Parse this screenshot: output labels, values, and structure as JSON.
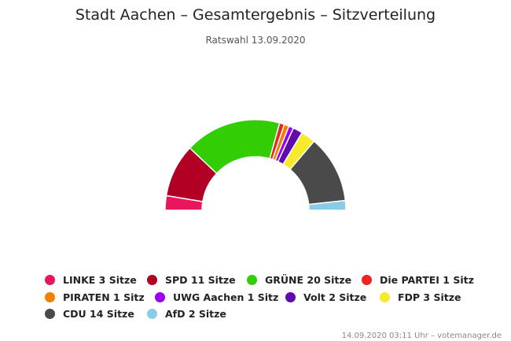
{
  "chart_data": {
    "type": "pie",
    "variant": "semicircle-donut",
    "title": "Stadt Aachen – Gesamtergebnis – Sitzverteilung",
    "subtitle": "Ratswahl 13.09.2020",
    "legend_position": "bottom",
    "series": [
      {
        "name": "LINKE",
        "value": 3,
        "label": "LINKE 3 Sitze",
        "color": "#e8175d"
      },
      {
        "name": "SPD",
        "value": 11,
        "label": "SPD 11 Sitze",
        "color": "#b00024"
      },
      {
        "name": "GRÜNE",
        "value": 20,
        "label": "GRÜNE 20 Sitze",
        "color": "#32cd05"
      },
      {
        "name": "Die PARTEI",
        "value": 1,
        "label": "Die PARTEI 1 Sitz",
        "color": "#ee2222"
      },
      {
        "name": "PIRATEN",
        "value": 1,
        "label": "PIRATEN 1 Sitz",
        "color": "#f28000"
      },
      {
        "name": "UWG Aachen",
        "value": 1,
        "label": "UWG Aachen 1 Sitz",
        "color": "#9a00f0"
      },
      {
        "name": "Volt",
        "value": 2,
        "label": "Volt 2 Sitze",
        "color": "#5e0aad"
      },
      {
        "name": "FDP",
        "value": 3,
        "label": "FDP 3 Sitze",
        "color": "#f7e92b"
      },
      {
        "name": "CDU",
        "value": 14,
        "label": "CDU 14 Sitze",
        "color": "#4a4a4a"
      },
      {
        "name": "AfD",
        "value": 2,
        "label": "AfD 2 Sitze",
        "color": "#88cce8"
      }
    ]
  },
  "credits": "14.09.2020 03:11 Uhr – votemanager.de"
}
